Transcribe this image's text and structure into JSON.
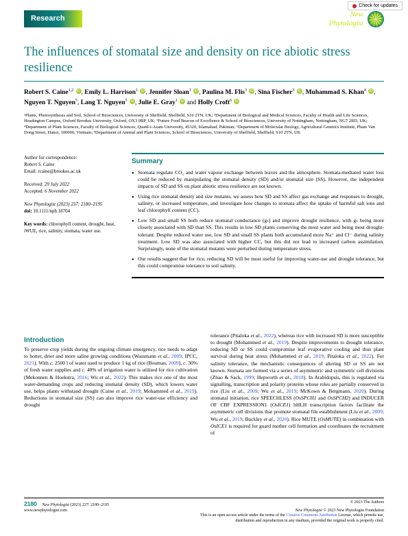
{
  "header": {
    "checkUpdates": "Check for updates",
    "badge": "Research",
    "journalLine1": "New",
    "journalLine2": "Phytologist"
  },
  "title": "The influences of stomatal size and density on rice abiotic stress resilience",
  "authors": {
    "a1": {
      "name": "Robert S. Caine",
      "sup": "1,2"
    },
    "a2": {
      "name": "Emily L. Harrison",
      "sup": "1"
    },
    "a3": {
      "name": "Jennifer Sloan",
      "sup": "1"
    },
    "a4": {
      "name": "Paulina M. Flis",
      "sup": "3"
    },
    "a5": {
      "name": "Sina Fischer",
      "sup": "3"
    },
    "a6": {
      "name": "Muhammad S. Khan",
      "sup": "4"
    },
    "a7": {
      "name": "Nguyen T. Nguyen",
      "sup": "5"
    },
    "a8": {
      "name": "Lang T. Nguyen",
      "sup": "5"
    },
    "a9": {
      "name": "Julie E. Gray",
      "sup": "1"
    },
    "a10": {
      "name": "Holly Croft",
      "sup": "6"
    },
    "and": " and "
  },
  "affil": "¹Plants, Photosynthesis and Soil, School of Biosciences, University of Sheffield, Sheffield, S10 2TN, UK; ²Department of Biological and Medical Sciences, Faculty of Health and Life Sciences, Headington Campus, Oxford Brookes University, Oxford, OX3 0BP, UK; ³Future Food Beacon of Excellence & School of Biosciences, University of Nottingham, Nottingham, NG7 2RD, UK; ⁴Department of Plant Sciences, Faculty of Biological Sciences, Quaid-i-Azam University, 45320, Islamabad, Pakistan; ⁵Department of Molecular Biology, Agricultural Genetics Institute, Pham Van Dong Street, Hanoi, 100000, Vietnam; ⁶Department of Animal and Plant Sciences, School of Biosciences, University of Sheffield, Sheffield, S10 2TN, UK",
  "meta": {
    "correspLabel": "Author for correspondence:",
    "correspName": "Robert S. Caine",
    "correspEmail": "Email: rcaine@brookes.ac.uk",
    "received": "Received: 29 July 2022",
    "accepted": "Accepted: 6 November 2022",
    "journalCite": "New Phytologist (2023) 237: 2180–2195",
    "doiLabel": "doi:",
    "doi": " 10.1111/nph.18704",
    "kwLabel": "Key words:",
    "kw": " chlorophyll content, drought, heat, iWUE, rice, salinity, stomata, water use."
  },
  "summary": {
    "head": "Summary",
    "b1": "Stomata regulate CO₂ and water vapour exchange between leaves and the atmosphere. Stomata-mediated water loss could be reduced by manipulating the stomatal density (SD) and/or stomatal size (SS). However, the independent impacts of SD and SS on plant abiotic stress resilience are not known.",
    "b2": "Using rice stomatal density and size mutants, we assess how SD and SS affect gas exchange and responses to drought, salinity, or increased temperature, and investigate how changes to stomata affect the uptake of harmful salt ions and leaf chlorophyll content (CC).",
    "b3": "Low SD and small SS both reduce stomatal conductance (gₛ) and improve drought resilience, with gₛ being more closely associated with SD than SS. This results in low SD plants conserving the most water and being most drought-tolerant. Despite reduced water use, low SD and small SS plants both accumulated more Na⁺ and Cl⁻ during salinity treatment. Low SD was also associated with higher CC, but this did not lead to increased carbon assimilation. Surprisingly, none of the stomatal mutants were perturbed during temperature stress.",
    "b4": "Our results suggest that for rice, reducing SD will be most useful for improving water-use and drought tolerance, but this could compromise tolerance to soil salinity."
  },
  "intro": {
    "head": "Introduction",
    "col1": "To preserve crop yields during the ongoing climate emergency, rice needs to adapt to hotter, drier and more saline growing conditions (Wassmann et al., 2009; IPCC, 2021). With c. 2500 l of water used to produce 1 kg of rice (Bouman, 2009), c. 30% of fresh water supplies and c. 40% of irrigation water is utilised for rice cultivation (Mekonnen & Hoekstra, 2016; Wu et al., 2022). This makes rice one of the most water-demanding crops and reducing stomatal density (SD), which lowers water use, helps plants withstand drought (Caine et al., 2019; Mohammed et al., 2019). Reductions in stomatal size (SS) can also improve rice water-use efficiency and drought",
    "col2": "tolerance (Pitaloka et al., 2022), whereas rice with increased SD is more susceptible to drought (Mohammed et al., 2019). Despite improvements to drought tolerance, reducing SD or SS could compromise leaf evaporative cooling and thus plant survival during heat stress (Mohammed et al., 2019; Pitaloka et al., 2022). For salinity tolerance, the mechanistic consequences of altering SD or SS are not known. Stomata are formed via a series of asymmetric and symmetric cell divisions (Zhao & Sack, 1999; Hepworth et al., 2018). In Arabidopsis, this is regulated via signalling, transcription and polarity proteins whose roles are partially conserved in rice (Liu et al., 2009; Wu et al., 2019; McKown & Bergmann, 2020). During stomatal initiation, rice SPEECHLESS (OsSPCH1 and OsSPCH2) and INDUCER OF CBF EXPRESSION1 (OsICE1) bHLH transcription factors facilitate the asymmetric cell divisions that promote stomatal file establishment (Liu et al., 2009; Wu et al., 2019; Buckley et al., 2020). Rice MUTE (OsMUTE) in combination with OsICE1 is required for guard mother cell formation and coordinates the recruitment of"
  },
  "footer": {
    "page": "2180",
    "citeItalic": "New Phytologist",
    "citeRest": " (2023) 237: 2180–2195",
    "web": "www.newphytologist.com",
    "r1": "© 2023 The Authors",
    "r2": " © 2023 New Phytologist Foundation",
    "r3a": "This is an open access article under the terms of the ",
    "r3cc": "Creative Commons Attribution",
    "r3b": " License, which permits use,",
    "r4": "distribution and reproduction in any medium, provided the original work is properly cited."
  }
}
